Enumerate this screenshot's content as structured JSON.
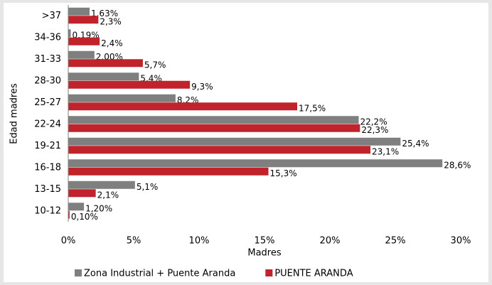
{
  "chart_data": {
    "type": "hbar",
    "x_label": "Madres",
    "y_label": "Edad madres",
    "categories": [
      ">37",
      "34-36",
      "31-33",
      "28-30",
      "25-27",
      "22-24",
      "19-21",
      "16-18",
      "13-15",
      "10-12"
    ],
    "series": [
      {
        "name": "Zona Industrial + Puente Aranda",
        "color": "#7f7f7f",
        "values": [
          1.63,
          0.19,
          2.0,
          5.4,
          8.2,
          22.2,
          25.4,
          28.6,
          5.1,
          1.2
        ],
        "value_labels": [
          "1,63%",
          "0,19%",
          "2,00%",
          "5,4%",
          "8,2%",
          "22,2%",
          "25,4%",
          "28,6%",
          "5,1%",
          "1,20%"
        ]
      },
      {
        "name": "PUENTE ARANDA",
        "color": "#c0232c",
        "values": [
          2.3,
          2.4,
          5.7,
          9.3,
          17.5,
          22.3,
          23.1,
          15.3,
          2.1,
          0.1
        ],
        "value_labels": [
          "2,3%",
          "2,4%",
          "5,7%",
          "9,3%",
          "17,5%",
          "22,3%",
          "23,1%",
          "15,3%",
          "2,1%",
          "0,10%"
        ]
      }
    ],
    "xlim": [
      0,
      30
    ],
    "xticks": [
      {
        "value": 0,
        "label": "0%"
      },
      {
        "value": 5,
        "label": "5%"
      },
      {
        "value": 10,
        "label": "10%"
      },
      {
        "value": 15,
        "label": "15%"
      },
      {
        "value": 20,
        "label": "20%"
      },
      {
        "value": 25,
        "label": "25%"
      },
      {
        "value": 30,
        "label": "30%"
      }
    ],
    "legend": "bottom",
    "grid": false
  }
}
